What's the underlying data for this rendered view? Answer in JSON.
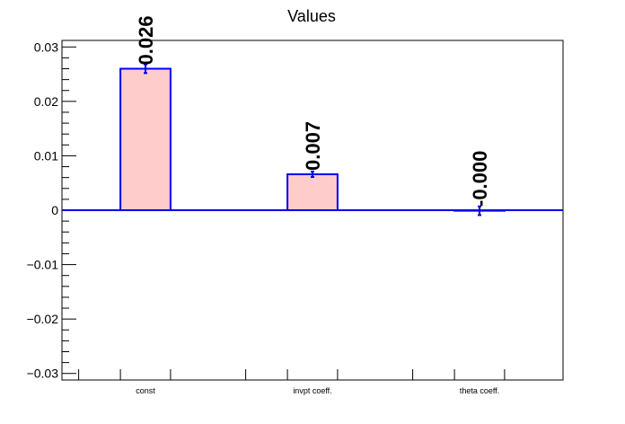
{
  "chart_data": {
    "type": "bar",
    "title": "Values",
    "categories": [
      "const",
      "invpt coeff.",
      "theta coeff."
    ],
    "values": [
      0.026,
      0.0066,
      -0.0001
    ],
    "errors": [
      0.0008,
      0.0005,
      0.0008
    ],
    "data_labels": [
      "0.026",
      "0.007",
      "-0.000"
    ],
    "ylim": [
      -0.0312,
      0.0312
    ],
    "yticks": [
      -0.03,
      -0.02,
      -0.01,
      0,
      0.01,
      0.02,
      0.03
    ],
    "ytick_labels": [
      "−0.03",
      "−0.02",
      "−0.01",
      "0",
      "0.01",
      "0.02",
      "0.03"
    ],
    "xlabel": "",
    "ylabel": "",
    "grid": false,
    "colors": {
      "bar_fill": "#ffcccc",
      "bar_edge": "#0000ee",
      "axis": "#000000"
    }
  }
}
